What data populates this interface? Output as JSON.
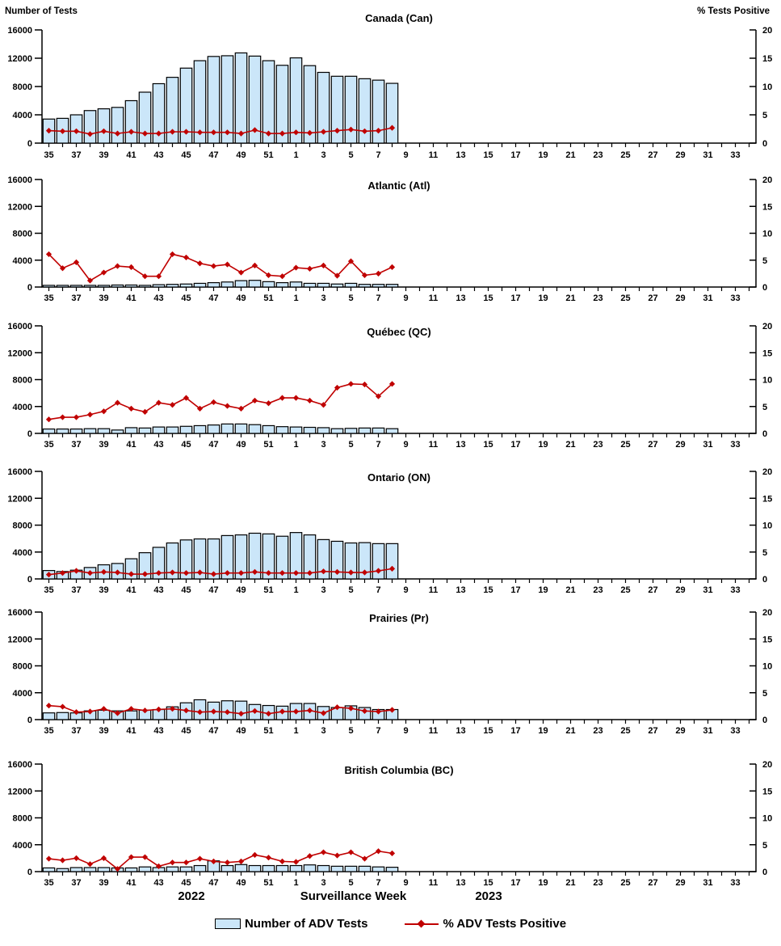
{
  "header": {
    "left_axis_title": "Number of Tests",
    "right_axis_title": "% Tests Positive"
  },
  "footer": {
    "year_left": "2022",
    "axis_title": "Surveillance Week",
    "year_right": "2023"
  },
  "legend": {
    "bars_label": "Number of ADV Tests",
    "line_label": "% ADV Tests Positive"
  },
  "colors": {
    "bar_fill": "#CBE6F9",
    "bar_stroke": "#000000",
    "line": "#C00000",
    "text": "#000000"
  },
  "axes": {
    "left_max": 16000,
    "right_max": 20,
    "left_ticks": [
      0,
      4000,
      8000,
      12000,
      16000
    ],
    "right_ticks": [
      0,
      5,
      10,
      15,
      20
    ],
    "label_every": 2,
    "weeks_full": [
      35,
      36,
      37,
      38,
      39,
      40,
      41,
      42,
      43,
      44,
      45,
      46,
      47,
      48,
      49,
      50,
      51,
      52,
      1,
      2,
      3,
      4,
      5,
      6,
      7,
      8,
      9,
      10,
      11,
      12,
      13,
      14,
      15,
      16,
      17,
      18,
      19,
      20,
      21,
      22,
      23,
      24,
      25,
      26,
      27,
      28,
      29,
      30,
      31,
      32,
      33,
      34
    ],
    "data_weeks": [
      35,
      36,
      37,
      38,
      39,
      40,
      41,
      42,
      43,
      44,
      45,
      46,
      47,
      48,
      49,
      50,
      51,
      52,
      1,
      2,
      3,
      4,
      5,
      6,
      7,
      8
    ]
  },
  "chart_data": [
    {
      "code": "can",
      "region": "Canada",
      "title": "Canada (Can)",
      "type": "bar+line",
      "left_ylim": [
        0,
        16000
      ],
      "right_ylim": [
        0,
        20
      ],
      "series": [
        {
          "name": "Number of ADV Tests",
          "type": "bar",
          "axis": "left",
          "values": [
            3400,
            3500,
            4000,
            4600,
            4850,
            5050,
            6000,
            7200,
            8400,
            9300,
            10600,
            11650,
            12250,
            12350,
            12750,
            12300,
            11650,
            11000,
            12050,
            10950,
            10000,
            9450,
            9450,
            9100,
            8900,
            8450
          ]
        },
        {
          "name": "% ADV Tests Positive",
          "type": "line",
          "axis": "right",
          "values": [
            2.2,
            2.1,
            2.1,
            1.6,
            2.1,
            1.7,
            2.0,
            1.7,
            1.7,
            2.0,
            2.0,
            1.9,
            1.9,
            1.9,
            1.7,
            2.3,
            1.7,
            1.7,
            1.9,
            1.8,
            2.0,
            2.2,
            2.4,
            2.1,
            2.2,
            2.7
          ]
        }
      ]
    },
    {
      "code": "atl",
      "region": "Atlantic",
      "title": "Atlantic (Atl)",
      "type": "bar+line",
      "left_ylim": [
        0,
        16000
      ],
      "right_ylim": [
        0,
        20
      ],
      "series": [
        {
          "name": "Number of ADV Tests",
          "type": "bar",
          "axis": "left",
          "values": [
            250,
            250,
            250,
            250,
            250,
            300,
            300,
            250,
            350,
            400,
            450,
            550,
            650,
            750,
            950,
            1000,
            800,
            650,
            750,
            550,
            550,
            450,
            550,
            400,
            400,
            400
          ]
        },
        {
          "name": "% ADV Tests Positive",
          "type": "line",
          "axis": "right",
          "values": [
            6.1,
            3.5,
            4.6,
            1.2,
            2.7,
            3.9,
            3.7,
            2.0,
            2.0,
            6.1,
            5.5,
            4.4,
            3.9,
            4.2,
            2.7,
            4.0,
            2.2,
            2.0,
            3.6,
            3.4,
            4.0,
            2.1,
            4.8,
            2.2,
            2.5,
            3.7
          ]
        }
      ]
    },
    {
      "code": "qc",
      "region": "Québec",
      "title": "Québec (QC)",
      "type": "bar+line",
      "left_ylim": [
        0,
        16000
      ],
      "right_ylim": [
        0,
        20
      ],
      "series": [
        {
          "name": "Number of ADV Tests",
          "type": "bar",
          "axis": "left",
          "values": [
            650,
            650,
            650,
            700,
            700,
            500,
            850,
            800,
            950,
            950,
            1050,
            1150,
            1250,
            1400,
            1400,
            1300,
            1150,
            1000,
            950,
            900,
            850,
            700,
            750,
            800,
            800,
            700
          ]
        },
        {
          "name": "% ADV Tests Positive",
          "type": "line",
          "axis": "right",
          "values": [
            2.6,
            3.0,
            3.0,
            3.5,
            4.1,
            5.7,
            4.6,
            4.0,
            5.7,
            5.3,
            6.6,
            4.6,
            5.8,
            5.1,
            4.6,
            6.1,
            5.6,
            6.6,
            6.6,
            6.1,
            5.3,
            8.5,
            9.2,
            9.1,
            6.9,
            9.2
          ]
        }
      ]
    },
    {
      "code": "on",
      "region": "Ontario",
      "title": "Ontario (ON)",
      "type": "bar+line",
      "left_ylim": [
        0,
        16000
      ],
      "right_ylim": [
        0,
        20
      ],
      "series": [
        {
          "name": "Number of ADV Tests",
          "type": "bar",
          "axis": "left",
          "values": [
            1250,
            1100,
            1300,
            1700,
            2100,
            2300,
            3000,
            3900,
            4700,
            5350,
            5800,
            5950,
            5950,
            6450,
            6550,
            6800,
            6700,
            6350,
            6900,
            6550,
            5850,
            5600,
            5350,
            5400,
            5250,
            5250
          ]
        },
        {
          "name": "% ADV Tests Positive",
          "type": "line",
          "axis": "right",
          "values": [
            0.8,
            1.1,
            1.5,
            1.1,
            1.3,
            1.2,
            0.9,
            0.9,
            1.1,
            1.2,
            1.1,
            1.2,
            0.9,
            1.1,
            1.1,
            1.3,
            1.1,
            1.1,
            1.1,
            1.1,
            1.4,
            1.3,
            1.2,
            1.2,
            1.5,
            1.9
          ]
        }
      ]
    },
    {
      "code": "pr",
      "region": "Prairies",
      "title": "Prairies (Pr)",
      "type": "bar+line",
      "left_ylim": [
        0,
        16000
      ],
      "right_ylim": [
        0,
        20
      ],
      "series": [
        {
          "name": "Number of ADV Tests",
          "type": "bar",
          "axis": "left",
          "values": [
            1000,
            1050,
            1000,
            1300,
            1400,
            1300,
            1300,
            1400,
            1500,
            1900,
            2500,
            2950,
            2600,
            2800,
            2750,
            2250,
            2100,
            2000,
            2400,
            2400,
            1950,
            1800,
            2050,
            1800,
            1500,
            1500
          ]
        },
        {
          "name": "% ADV Tests Positive",
          "type": "line",
          "axis": "right",
          "values": [
            2.6,
            2.4,
            1.4,
            1.5,
            2.0,
            1.2,
            2.0,
            1.7,
            1.9,
            2.0,
            1.7,
            1.4,
            1.5,
            1.4,
            1.1,
            1.6,
            1.1,
            1.5,
            1.5,
            1.7,
            1.2,
            2.3,
            2.1,
            1.6,
            1.5,
            1.8
          ]
        }
      ]
    },
    {
      "code": "bc",
      "region": "British Columbia",
      "title": "British Columbia (BC)",
      "type": "bar+line",
      "left_ylim": [
        0,
        16000
      ],
      "right_ylim": [
        0,
        20
      ],
      "series": [
        {
          "name": "Number of ADV Tests",
          "type": "bar",
          "axis": "left",
          "values": [
            550,
            450,
            600,
            600,
            600,
            550,
            550,
            700,
            600,
            700,
            700,
            900,
            1600,
            900,
            1050,
            900,
            900,
            900,
            900,
            1000,
            900,
            800,
            800,
            800,
            700,
            650
          ]
        },
        {
          "name": "% ADV Tests Positive",
          "type": "line",
          "axis": "right",
          "values": [
            2.4,
            2.1,
            2.5,
            1.4,
            2.5,
            0.5,
            2.7,
            2.7,
            1.0,
            1.7,
            1.7,
            2.4,
            1.9,
            1.7,
            1.9,
            3.1,
            2.6,
            1.9,
            1.8,
            2.9,
            3.6,
            3.0,
            3.6,
            2.4,
            3.8,
            3.4
          ]
        }
      ]
    }
  ]
}
